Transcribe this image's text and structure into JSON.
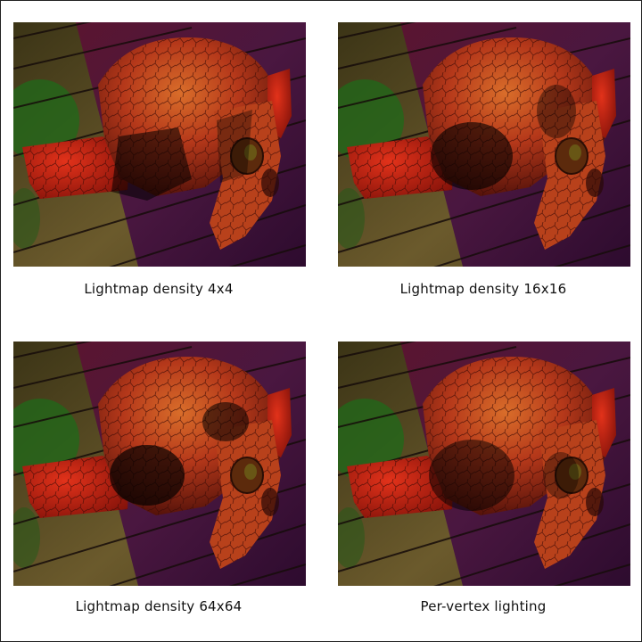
{
  "figure": {
    "panels": [
      {
        "caption": "Lightmap density 4x4",
        "lighting": "lightmap-4x4"
      },
      {
        "caption": "Lightmap density 16x16",
        "lighting": "lightmap-16x16"
      },
      {
        "caption": "Lightmap density 64x64",
        "lighting": "lightmap-64x64"
      },
      {
        "caption": "Per-vertex lighting",
        "lighting": "per-vertex"
      }
    ]
  },
  "colors": {
    "floor_wood": "#6b5a2c",
    "floor_purple": "#4a1740",
    "floor_magenta": "#6a1a3a",
    "green_light": "#1f6a1a",
    "head_orange": "#c2461a",
    "head_red": "#d0220f",
    "plank_line": "#160c0a"
  }
}
